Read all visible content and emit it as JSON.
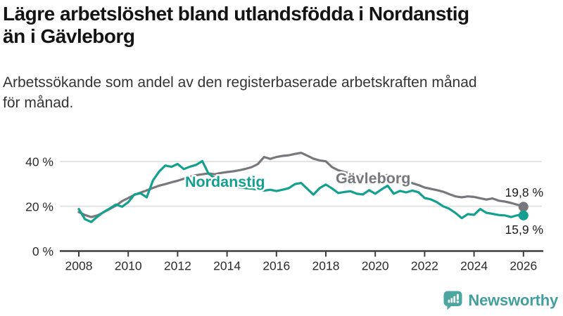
{
  "header": {
    "title_line1": "Lägre arbetslöshet bland utlandsfödda i Nordanstig",
    "title_line2": "än i Gävleborg",
    "subtitle_line1": "Arbetssökande som andel av den registerbaserade arbetskraften månad",
    "subtitle_line2": "för månad."
  },
  "footer": {
    "brand": "Newsworthy",
    "brand_color": "#41A09B",
    "logo_icon": "newsworthy-speech-bubble-bar-chart-icon",
    "logo_icon_color": "#4BA6A1"
  },
  "chart_data": {
    "type": "line",
    "unit": "%",
    "grid": "horizontal only",
    "legend_position": "labels drawn on lines",
    "x_start": 2008,
    "x_step": 0.25,
    "x_axis": {
      "ticks": [
        2008,
        2010,
        2012,
        2014,
        2016,
        2018,
        2020,
        2022,
        2024,
        2026
      ]
    },
    "y_axis": {
      "lim": [
        0,
        45
      ],
      "ticks": [
        {
          "value": 0,
          "label": "0 %"
        },
        {
          "value": 20,
          "label": "20 %"
        },
        {
          "value": 40,
          "label": "40 %"
        }
      ]
    },
    "colors": {
      "grid": "#E3E3E3",
      "axis": "#3D3D3D",
      "tick_text": "#2B2B2B",
      "annotation_text": "#1C1C1C"
    },
    "series": [
      {
        "id": "gavleborg",
        "name": "Gävleborg",
        "color": "#77787C",
        "end_value": 19.8,
        "end_label": "19,8 %",
        "values": [
          17.4,
          16.1,
          15.2,
          15.9,
          17.3,
          18.8,
          20.3,
          22.3,
          23.7,
          25.1,
          26.1,
          27.1,
          28.2,
          29.2,
          29.9,
          30.7,
          31.4,
          32.3,
          33.2,
          33.9,
          34.3,
          34.7,
          34.3,
          34.9,
          35.3,
          35.6,
          36.1,
          36.7,
          37.5,
          38.9,
          42.0,
          41.2,
          42.0,
          42.5,
          42.8,
          43.4,
          43.9,
          42.6,
          41.3,
          40.5,
          40.1,
          37.5,
          36.1,
          35.3,
          34.6,
          34.1,
          33.7,
          33.2,
          33.0,
          33.6,
          33.9,
          33.3,
          32.4,
          31.4,
          30.3,
          29.5,
          28.4,
          27.8,
          27.2,
          26.5,
          25.4,
          24.4,
          24.0,
          24.4,
          24.2,
          23.6,
          23.0,
          23.5,
          22.5,
          22.1,
          21.5,
          20.7,
          19.8
        ]
      },
      {
        "id": "nordanstig",
        "name": "Nordanstig",
        "color": "#13A08F",
        "end_value": 15.9,
        "end_label": "15,9 %",
        "values": [
          18.8,
          14.2,
          13.0,
          15.3,
          17.4,
          19.0,
          20.8,
          19.8,
          21.8,
          25.3,
          25.8,
          24.0,
          31.5,
          35.5,
          38.2,
          37.6,
          38.9,
          36.6,
          37.7,
          38.5,
          40.2,
          34.6,
          32.6,
          31.2,
          30.2,
          29.2,
          28.5,
          28.1,
          27.9,
          27.4,
          27.0,
          27.4,
          26.8,
          27.4,
          28.1,
          29.9,
          30.4,
          27.8,
          25.2,
          28.1,
          29.7,
          28.0,
          25.9,
          26.4,
          26.7,
          25.6,
          25.3,
          27.2,
          25.6,
          27.5,
          29.2,
          25.6,
          26.9,
          26.2,
          27.0,
          26.3,
          23.7,
          23.1,
          21.8,
          20.0,
          18.9,
          17.0,
          14.7,
          16.5,
          16.2,
          18.8,
          17.1,
          16.6,
          16.1,
          15.9,
          15.2,
          16.0,
          15.9
        ]
      }
    ]
  }
}
